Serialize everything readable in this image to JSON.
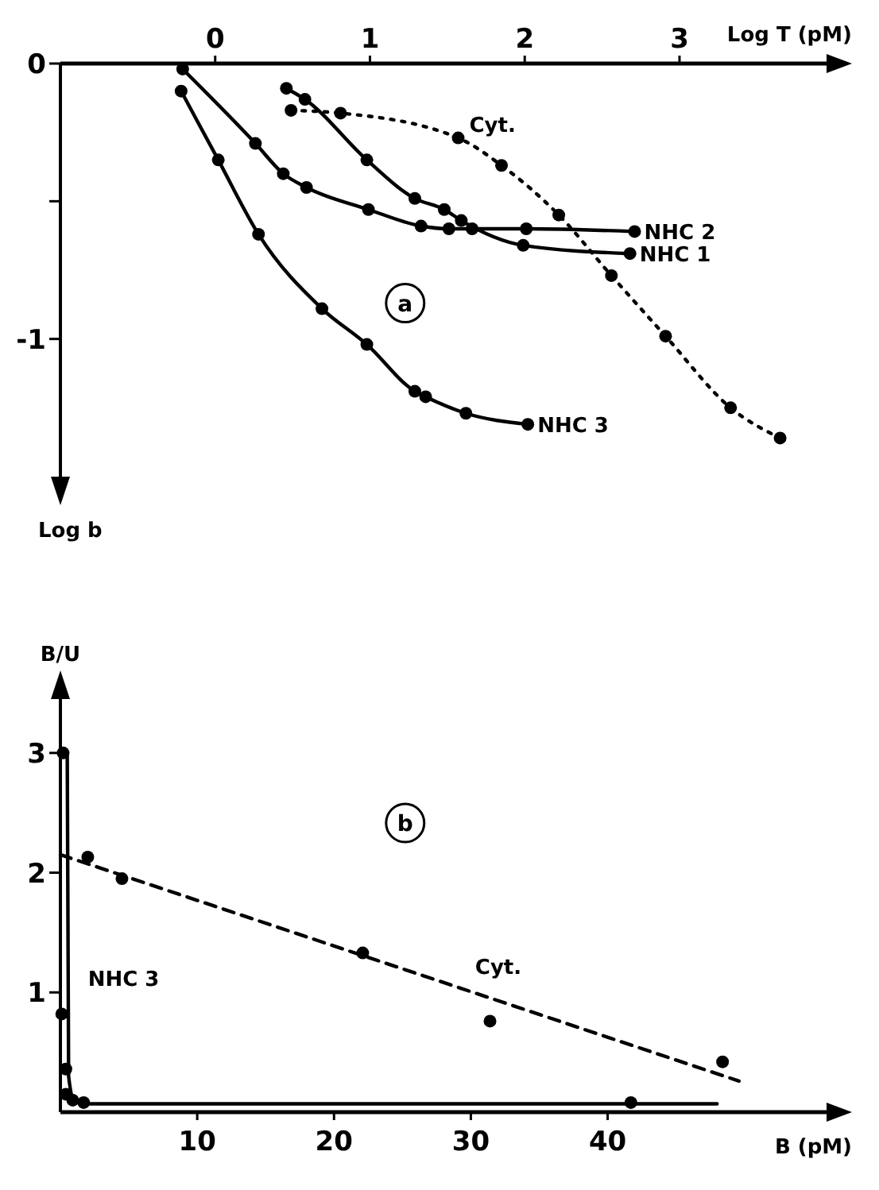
{
  "chart_data": [
    {
      "type": "line",
      "xlabel": "Log T (pM)",
      "ylabel": "Log b",
      "xlim": [
        -1.0,
        3.95
      ],
      "ylim": [
        -1.5,
        0
      ],
      "xticks": [
        0,
        1,
        2,
        3
      ],
      "yticks": [
        0,
        {
          "value": -0.5,
          "label": null
        },
        -1
      ],
      "marker": "circle",
      "annotations": [
        "a",
        {
          "text": "Cyt.",
          "x": 1.57,
          "y": -0.27
        }
      ],
      "series": [
        {
          "name": "NHC 3",
          "color": "#000000",
          "x": [
            -0.22,
            0.02,
            0.28,
            0.69,
            0.98,
            1.29,
            1.36,
            1.62,
            2.02
          ],
          "values": [
            -0.1,
            -0.35,
            -0.62,
            -0.89,
            -1.02,
            -1.19,
            -1.21,
            -1.27,
            -1.31
          ]
        },
        {
          "name": "NHC 2",
          "color": "#000000",
          "x": [
            -0.21,
            0.26,
            0.44,
            0.59,
            0.99,
            1.33,
            1.51,
            1.66,
            2.01,
            2.71
          ],
          "values": [
            -0.02,
            -0.29,
            -0.4,
            -0.45,
            -0.53,
            -0.59,
            -0.6,
            -0.6,
            -0.6,
            -0.61
          ]
        },
        {
          "name": "NHC 1",
          "color": "#000000",
          "x": [
            0.46,
            0.58,
            0.98,
            1.29,
            1.48,
            1.59,
            1.99,
            2.68
          ],
          "values": [
            -0.09,
            -0.13,
            -0.35,
            -0.49,
            -0.53,
            -0.57,
            -0.66,
            -0.69
          ]
        },
        {
          "color": "#000000",
          "line_style": "dotted",
          "x": [
            0.49,
            0.81,
            1.57,
            1.85,
            2.22,
            2.56,
            2.91,
            3.33,
            3.65
          ],
          "values": [
            -0.17,
            -0.18,
            -0.27,
            -0.37,
            -0.55,
            -0.77,
            -0.99,
            -1.25,
            -1.36
          ]
        }
      ]
    },
    {
      "type": "scatter",
      "xlabel": "B (pM)",
      "ylabel": "B/U",
      "xlim": [
        0,
        56
      ],
      "ylim": [
        0,
        3.45
      ],
      "xticks": [
        10,
        20,
        30,
        40
      ],
      "yticks": [
        1,
        2,
        3
      ],
      "marker": "circle",
      "annotations": [
        "b",
        {
          "text": "Cyt.",
          "x": 29.5,
          "y": 1.1
        },
        {
          "text": "NHC 3",
          "x": 1.2,
          "y": 1.0
        }
      ],
      "series": [
        {
          "color": "#000000",
          "x": [
            2.0,
            4.5,
            22.1,
            31.4,
            48.4
          ],
          "values": [
            2.13,
            1.95,
            1.33,
            0.76,
            0.42
          ]
        },
        {
          "type": "line",
          "color": "#000000",
          "line_style": "dashed",
          "marker": "none",
          "x": [
            0,
            49.6
          ],
          "values": [
            2.15,
            0.26
          ]
        },
        {
          "color": "#000000",
          "x": [
            0.2,
            0.1,
            0.4,
            0.4,
            0.9,
            1.7,
            41.7
          ],
          "values": [
            3.0,
            0.82,
            0.36,
            0.15,
            0.1,
            0.08,
            0.08
          ]
        },
        {
          "type": "line",
          "color": "#000000",
          "marker": "none",
          "x": [
            0.5,
            0.6,
            1.0,
            2.0,
            48
          ],
          "values": [
            3.0,
            0.3,
            0.1,
            0.07,
            0.07
          ]
        }
      ]
    }
  ]
}
